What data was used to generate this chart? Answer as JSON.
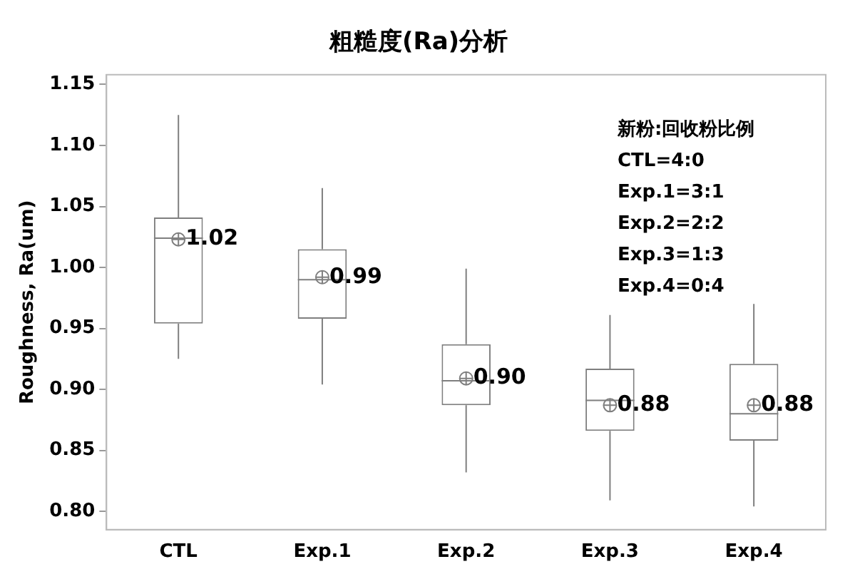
{
  "chart_data": {
    "type": "box",
    "title": "粗糙度(Ra)分析",
    "ylabel": "Roughness, Ra(um)",
    "categories": [
      "CTL",
      "Exp.1",
      "Exp.2",
      "Exp.3",
      "Exp.4"
    ],
    "boxes": [
      {
        "low": 0.925,
        "q1": 0.954,
        "median": 1.024,
        "q3": 1.041,
        "high": 1.125,
        "mean": 1.023
      },
      {
        "low": 0.904,
        "q1": 0.958,
        "median": 0.99,
        "q3": 1.015,
        "high": 1.065,
        "mean": 0.992
      },
      {
        "low": 0.832,
        "q1": 0.887,
        "median": 0.907,
        "q3": 0.937,
        "high": 0.999,
        "mean": 0.909
      },
      {
        "low": 0.809,
        "q1": 0.866,
        "median": 0.891,
        "q3": 0.917,
        "high": 0.961,
        "mean": 0.887
      },
      {
        "low": 0.804,
        "q1": 0.858,
        "median": 0.88,
        "q3": 0.921,
        "high": 0.97,
        "mean": 0.887
      }
    ],
    "color": "#7f7f7f",
    "value_labels": [
      "1.02",
      "0.99",
      "0.90",
      "0.88",
      "0.88"
    ],
    "ylim": [
      0.785,
      1.158
    ],
    "yticks": [
      {
        "value": 0.8,
        "label": "0.80"
      },
      {
        "value": 0.85,
        "label": "0.85"
      },
      {
        "value": 0.9,
        "label": "0.90"
      },
      {
        "value": 0.95,
        "label": "0.95"
      },
      {
        "value": 1.0,
        "label": "1.00"
      },
      {
        "value": 1.05,
        "label": "1.05"
      },
      {
        "value": 1.1,
        "label": "1.10"
      },
      {
        "value": 1.15,
        "label": "1.15"
      }
    ],
    "grid": false,
    "legend": false,
    "annotations": [
      "新粉:回收粉比例",
      "CTL=4:0",
      "Exp.1=3:1",
      "Exp.2=2:2",
      "Exp.3=1:3",
      "Exp.4=0:4"
    ]
  }
}
